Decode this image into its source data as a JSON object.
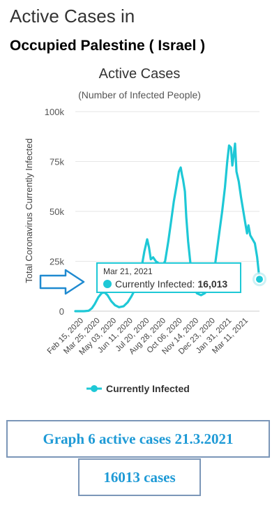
{
  "heading": {
    "line1": "Active Cases in",
    "line2": "Occupied Palestine ( Israel )"
  },
  "chart_data": {
    "type": "line",
    "title": "Active Cases",
    "subtitle": "(Number of Infected People)",
    "ylabel": "Total Coronavirus Currently Infected",
    "xlabel": "",
    "ylim": [
      0,
      100000
    ],
    "y_ticks": [
      "0",
      "25k",
      "50k",
      "75k",
      "100k"
    ],
    "y_tick_values": [
      0,
      25000,
      50000,
      75000,
      100000
    ],
    "x_ticks": [
      "Feb 15, 2020",
      "Mar 25, 2020",
      "May 03, 2020",
      "Jun 11, 2020",
      "Jul 20, 2020",
      "Aug 28, 2020",
      "Oct 06, 2020",
      "Nov 14, 2020",
      "Dec 23, 2020",
      "Jan 31, 2021",
      "Mar 11, 2021"
    ],
    "grid": true,
    "legend_position": "bottom",
    "series": [
      {
        "name": "Currently Infected",
        "color": "#1ec8d6",
        "points": [
          [
            "2020-02-15",
            0
          ],
          [
            "2020-02-25",
            0
          ],
          [
            "2020-03-05",
            0
          ],
          [
            "2020-03-15",
            200
          ],
          [
            "2020-03-22",
            1500
          ],
          [
            "2020-03-28",
            3500
          ],
          [
            "2020-04-05",
            7000
          ],
          [
            "2020-04-12",
            9000
          ],
          [
            "2020-04-18",
            9500
          ],
          [
            "2020-04-25",
            8000
          ],
          [
            "2020-05-03",
            5000
          ],
          [
            "2020-05-11",
            3000
          ],
          [
            "2020-05-20",
            2000
          ],
          [
            "2020-05-30",
            2500
          ],
          [
            "2020-06-08",
            4500
          ],
          [
            "2020-06-16",
            7500
          ],
          [
            "2020-06-24",
            11000
          ],
          [
            "2020-07-01",
            15000
          ],
          [
            "2020-07-08",
            22000
          ],
          [
            "2020-07-14",
            30000
          ],
          [
            "2020-07-20",
            36000
          ],
          [
            "2020-07-24",
            32000
          ],
          [
            "2020-07-28",
            26000
          ],
          [
            "2020-08-02",
            27000
          ],
          [
            "2020-08-08",
            25000
          ],
          [
            "2020-08-14",
            24000
          ],
          [
            "2020-08-20",
            22000
          ],
          [
            "2020-08-28",
            25000
          ],
          [
            "2020-09-04",
            35000
          ],
          [
            "2020-09-10",
            45000
          ],
          [
            "2020-09-16",
            55000
          ],
          [
            "2020-09-22",
            63000
          ],
          [
            "2020-09-27",
            70000
          ],
          [
            "2020-10-01",
            72000
          ],
          [
            "2020-10-04",
            68000
          ],
          [
            "2020-10-06",
            66000
          ],
          [
            "2020-10-10",
            60000
          ],
          [
            "2020-10-13",
            47000
          ],
          [
            "2020-10-17",
            35000
          ],
          [
            "2020-10-22",
            24000
          ],
          [
            "2020-10-28",
            14000
          ],
          [
            "2020-11-05",
            9000
          ],
          [
            "2020-11-14",
            8000
          ],
          [
            "2020-11-22",
            9000
          ],
          [
            "2020-11-30",
            11000
          ],
          [
            "2020-12-08",
            15000
          ],
          [
            "2020-12-15",
            24000
          ],
          [
            "2020-12-23",
            38000
          ],
          [
            "2020-12-30",
            50000
          ],
          [
            "2021-01-05",
            62000
          ],
          [
            "2021-01-10",
            75000
          ],
          [
            "2021-01-14",
            83000
          ],
          [
            "2021-01-18",
            82000
          ],
          [
            "2021-01-21",
            73000
          ],
          [
            "2021-01-24",
            78000
          ],
          [
            "2021-01-27",
            84000
          ],
          [
            "2021-01-30",
            70000
          ],
          [
            "2021-02-04",
            65000
          ],
          [
            "2021-02-09",
            57000
          ],
          [
            "2021-02-14",
            50000
          ],
          [
            "2021-02-19",
            43000
          ],
          [
            "2021-02-22",
            39000
          ],
          [
            "2021-02-25",
            43000
          ],
          [
            "2021-03-01",
            38000
          ],
          [
            "2021-03-06",
            36000
          ],
          [
            "2021-03-11",
            34000
          ],
          [
            "2021-03-16",
            27000
          ],
          [
            "2021-03-21",
            16013
          ]
        ]
      }
    ],
    "tooltip": {
      "date": "Mar 21, 2021",
      "label": "Currently Infected:",
      "value": "16,013"
    },
    "highlighted_point": [
      "2021-03-21",
      16013
    ]
  },
  "caption": {
    "main": "Graph 6 active  cases 21.3.2021",
    "count": "16013 cases"
  },
  "colors": {
    "line": "#1ec8d6",
    "caption_text": "#1e9ad6",
    "box_border": "#7b96b8",
    "arrow": "#1f8ad0"
  },
  "icons": [
    "pointer-arrow-icon",
    "legend-line-icon"
  ]
}
